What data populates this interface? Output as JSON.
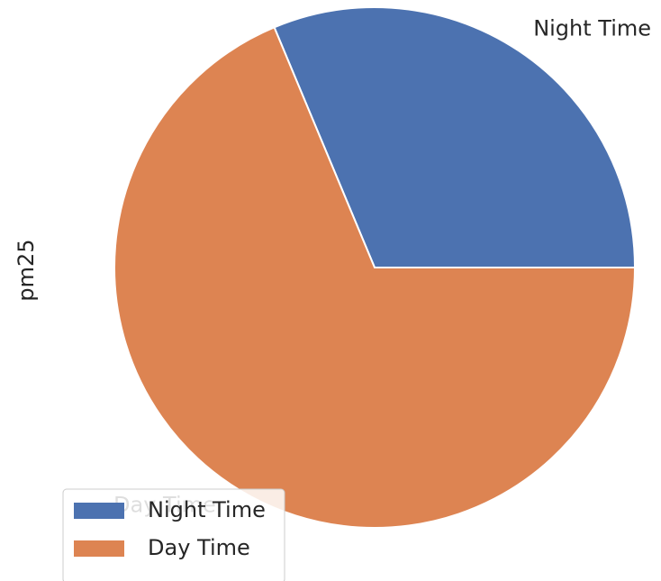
{
  "chart_data": {
    "type": "pie",
    "ylabel": "pm25",
    "categories": [
      "Night Time",
      "Day Time"
    ],
    "values": [
      31.3,
      68.7
    ],
    "colors": [
      "#4c72b0",
      "#dd8452"
    ],
    "legend": "lower left"
  }
}
